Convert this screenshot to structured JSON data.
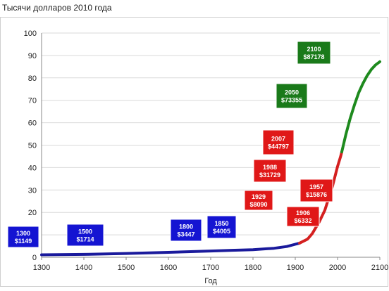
{
  "chart_data": {
    "type": "line",
    "title": "Тысячи долларов 2010 года",
    "xlabel": "Год",
    "ylabel": "",
    "xlim": [
      1300,
      2100
    ],
    "ylim": [
      0,
      100
    ],
    "xticks": [
      1300,
      1400,
      1500,
      1600,
      1700,
      1800,
      1900,
      2000,
      2100
    ],
    "yticks": [
      0,
      10,
      20,
      30,
      40,
      50,
      60,
      70,
      80,
      90,
      100
    ],
    "grid": "horizontal",
    "series": [
      {
        "color": "#1a1a9c",
        "x": [
          1300,
          1400,
          1500,
          1600,
          1700,
          1750,
          1800,
          1850,
          1880,
          1900,
          1910
        ],
        "y": [
          1.1,
          1.3,
          1.7,
          2.2,
          2.8,
          3.1,
          3.4,
          4.0,
          4.8,
          5.8,
          6.3
        ]
      },
      {
        "color": "#d42020",
        "x": [
          1910,
          1929,
          1940,
          1957,
          1970,
          1988,
          2000,
          2007,
          2010
        ],
        "y": [
          6.3,
          8.1,
          10.5,
          15.9,
          21.0,
          31.7,
          40.5,
          44.8,
          47.0
        ]
      },
      {
        "color": "#1e8a1e",
        "x": [
          2010,
          2020,
          2030,
          2040,
          2050,
          2060,
          2070,
          2080,
          2090,
          2100
        ],
        "y": [
          47.0,
          55.0,
          62.0,
          68.0,
          73.4,
          77.5,
          81.0,
          83.8,
          85.8,
          87.2
        ]
      }
    ],
    "annotations": [
      {
        "year": "1300",
        "value": "$1149",
        "color": "#1414d2"
      },
      {
        "year": "1500",
        "value": "$1714",
        "color": "#1414d2"
      },
      {
        "year": "1800",
        "value": "$3447",
        "color": "#1414d2"
      },
      {
        "year": "1850",
        "value": "$4005",
        "color": "#1414d2"
      },
      {
        "year": "1929",
        "value": "$8090",
        "color": "#e01818"
      },
      {
        "year": "1906",
        "value": "$6332",
        "color": "#e01818"
      },
      {
        "year": "1957",
        "value": "$15876",
        "color": "#e01818"
      },
      {
        "year": "1988",
        "value": "$31729",
        "color": "#e01818"
      },
      {
        "year": "2007",
        "value": "$44797",
        "color": "#e01818"
      },
      {
        "year": "2050",
        "value": "$73355",
        "color": "#1a7a1a"
      },
      {
        "year": "2100",
        "value": "$87178",
        "color": "#1a7a1a"
      }
    ]
  }
}
